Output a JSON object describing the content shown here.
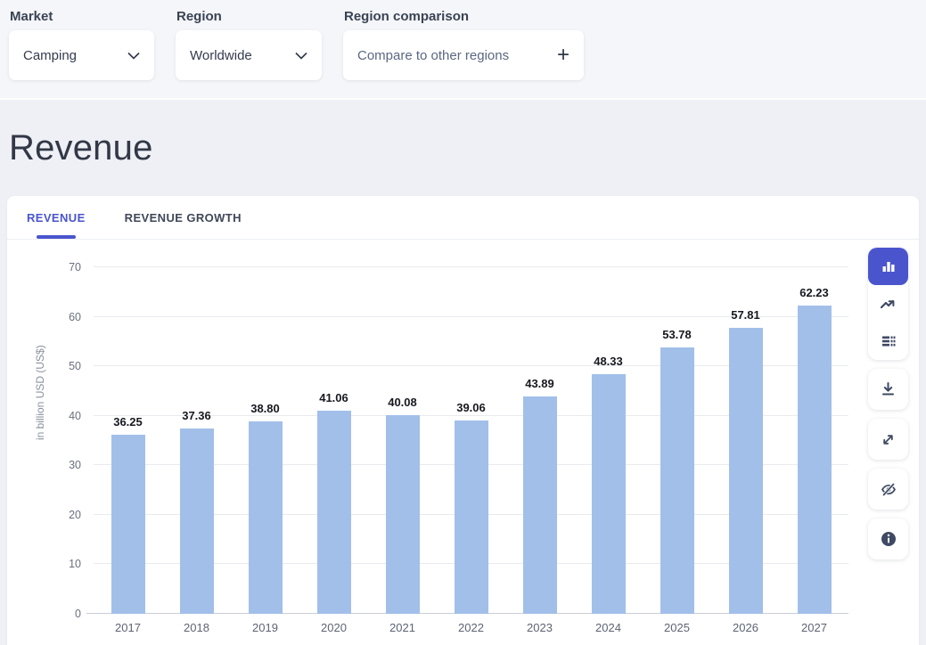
{
  "filters": {
    "market": {
      "label": "Market",
      "value": "Camping"
    },
    "region": {
      "label": "Region",
      "value": "Worldwide"
    },
    "region_comparison": {
      "label": "Region comparison",
      "button_label": "Compare to other regions",
      "action_icon": "plus-icon"
    }
  },
  "page": {
    "title": "Revenue"
  },
  "tabs": [
    {
      "label": "REVENUE",
      "active": true
    },
    {
      "label": "REVENUE GROWTH",
      "active": false
    }
  ],
  "chart_data": {
    "type": "bar",
    "title": "Revenue",
    "categories": [
      "2017",
      "2018",
      "2019",
      "2020",
      "2021",
      "2022",
      "2023",
      "2024",
      "2025",
      "2026",
      "2027"
    ],
    "values": [
      36.25,
      37.36,
      38.8,
      41.06,
      40.08,
      39.06,
      43.89,
      48.33,
      53.78,
      57.81,
      62.23
    ],
    "value_labels": [
      "36.25",
      "37.36",
      "38.80",
      "41.06",
      "40.08",
      "39.06",
      "43.89",
      "48.33",
      "53.78",
      "57.81",
      "62.23"
    ],
    "xlabel": "",
    "ylabel": "in billion USD (US$)",
    "ylim": [
      0,
      70
    ],
    "yticks": [
      0,
      10,
      20,
      30,
      40,
      50,
      60,
      70
    ],
    "grid": true,
    "legend": false,
    "bar_color": "#a2bfe9"
  },
  "toolbar": {
    "buttons": [
      {
        "icon": "bar-chart-icon",
        "active": true
      },
      {
        "icon": "line-chart-icon",
        "active": false
      },
      {
        "icon": "table-icon",
        "active": false
      },
      {
        "icon": "download-icon",
        "active": false
      },
      {
        "icon": "expand-icon",
        "active": false
      },
      {
        "icon": "hide-icon",
        "active": false
      },
      {
        "icon": "info-icon",
        "active": false
      }
    ]
  },
  "colors": {
    "accent": "#4a55cd",
    "bar": "#a2bfe9",
    "topbar_bg": "#f5f6f9",
    "section_bg": "#eef0f5",
    "card_bg": "#ffffff"
  }
}
